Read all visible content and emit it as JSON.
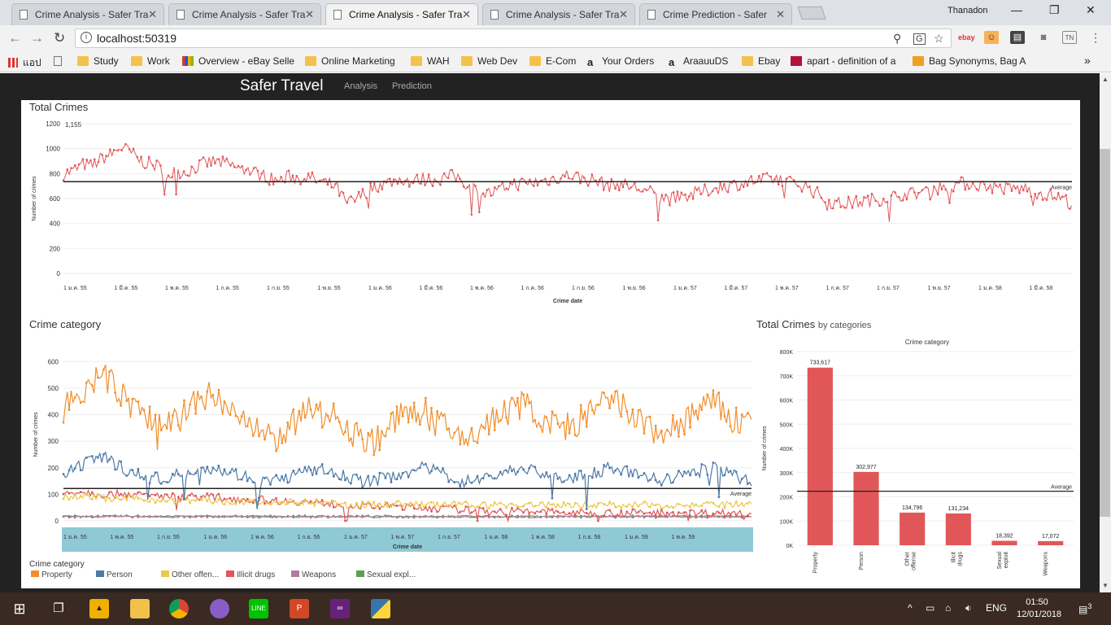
{
  "browser": {
    "tabs": [
      {
        "label": "Crime Analysis - Safer Tra",
        "active": false
      },
      {
        "label": "Crime Analysis - Safer Tra",
        "active": false
      },
      {
        "label": "Crime Analysis - Safer Tra",
        "active": true
      },
      {
        "label": "Crime Analysis - Safer Tra",
        "active": false
      },
      {
        "label": "Crime Prediction - Safer",
        "active": false
      }
    ],
    "user": "Thanadon",
    "url": "localhost:50319",
    "bookmarks": [
      {
        "label": "แอป",
        "icon": "apps-grid-icon"
      },
      {
        "label": "",
        "icon": "page-icon"
      },
      {
        "label": "Study",
        "icon": "folder-icon"
      },
      {
        "label": "Work",
        "icon": "folder-icon"
      },
      {
        "label": "Overview - eBay Selle",
        "icon": "ebay-icon"
      },
      {
        "label": "Online Marketing",
        "icon": "folder-icon"
      },
      {
        "label": "WAH",
        "icon": "folder-icon"
      },
      {
        "label": "Web Dev",
        "icon": "folder-icon"
      },
      {
        "label": "E-Com",
        "icon": "folder-icon"
      },
      {
        "label": "Your Orders",
        "icon": "amazon-icon"
      },
      {
        "label": "AraauuDS",
        "icon": "amazon-icon"
      },
      {
        "label": "Ebay",
        "icon": "folder-icon"
      },
      {
        "label": "apart - definition of a",
        "icon": "dictionary-icon"
      },
      {
        "label": "Bag Synonyms, Bag A",
        "icon": "thesaurus-icon"
      }
    ]
  },
  "app": {
    "brand": "Safer Travel",
    "nav": [
      "Analysis",
      "Prediction"
    ]
  },
  "panels": {
    "total": {
      "title": "Total Crimes"
    },
    "category": {
      "title": "Crime category"
    },
    "bycat": {
      "title": "Total Crimes",
      "subtitle": "by categories"
    }
  },
  "chart_data": [
    {
      "type": "line",
      "title": "Total Crimes",
      "xlabel": "Crime date",
      "ylabel": "Number of crimes",
      "ylim": [
        0,
        1200
      ],
      "yticks": [
        0,
        200,
        400,
        600,
        800,
        1000,
        1200
      ],
      "xticks": [
        "1 ม.ค. 55",
        "1 มี.ค. 55",
        "1 พ.ค. 55",
        "1 ก.ค. 55",
        "1 ก.ย. 55",
        "1 พ.ย. 55",
        "1 ม.ค. 56",
        "1 มี.ค. 56",
        "1 พ.ค. 56",
        "1 ก.ค. 56",
        "1 ก.ย. 56",
        "1 พ.ย. 56",
        "1 ม.ค. 57",
        "1 มี.ค. 57",
        "1 พ.ค. 57",
        "1 ก.ค. 57",
        "1 ก.ย. 57",
        "1 พ.ย. 57",
        "1 ม.ค. 58",
        "1 มี.ค. 58",
        "1 พ.ค. 58",
        "1 ก.ค. 58",
        "1 ก.ย. 58",
        "1 พ.ย. 58",
        "1 ม.ค. 59",
        "1 มี.ค. 59",
        "1 พ.ค. 59",
        "1 ก.ค. 59",
        "1 ก.ย. 59",
        "1 พ.ย. 59",
        "1 ม.ค. 60",
        "1 มี.ค. 60",
        "1 พ.ค. 60",
        "1 ก.ค. 60",
        "1 ก.ย. 60",
        "1 พ.ย. 60",
        "1 ม.ค. 61",
        "1 มี.ค. 61",
        "1 พ.ค. 61",
        "1 ก.ค. 61",
        "1 ก.ย. 61"
      ],
      "annotation": "1,155",
      "reference_line": {
        "label": "Average",
        "value": 735
      },
      "series": [
        {
          "color": "#e15759",
          "monthly_values": [
            800,
            820,
            870,
            860,
            920,
            950,
            1010,
            980,
            910,
            880,
            860,
            780,
            820,
            810,
            850,
            880,
            900,
            880,
            860,
            830,
            820,
            790,
            760,
            740,
            780,
            760,
            770,
            740,
            720,
            690,
            560,
            590,
            650,
            700,
            720,
            740,
            760,
            730,
            760,
            750,
            760,
            780,
            770,
            700,
            660,
            640,
            650,
            700,
            720,
            720,
            730,
            740,
            760,
            780,
            790,
            760,
            750,
            730,
            700,
            720,
            700,
            680,
            660,
            620,
            600,
            600,
            620,
            640,
            660,
            680,
            700,
            710,
            720,
            740,
            740,
            760,
            760,
            730,
            720,
            690,
            640,
            580,
            560,
            560,
            570,
            580,
            590,
            600,
            620,
            630,
            640,
            650,
            670,
            690,
            700,
            720,
            720,
            710,
            700,
            690,
            680,
            680,
            680,
            650,
            640,
            620,
            600,
            560
          ]
        }
      ]
    },
    {
      "type": "line",
      "title": "Crime category",
      "xlabel": "Crime date",
      "ylabel": "Number of crimes",
      "ylim": [
        0,
        650
      ],
      "yticks": [
        0,
        100,
        200,
        300,
        400,
        500,
        600
      ],
      "xticks": [
        "1 ม.ค. 55",
        "1 พ.ค. 55",
        "1 ก.ย. 55",
        "1 ม.ค. 56",
        "1 พ.ค. 56",
        "1 ก.ย. 56",
        "1 ม.ค. 57",
        "1 พ.ค. 57",
        "1 ก.ย. 57",
        "1 ม.ค. 58",
        "1 พ.ค. 58",
        "1 ก.ย. 58",
        "1 ม.ค. 59",
        "1 พ.ค. 59",
        "1 ก.ย. 59",
        "1 ม.ค. 60",
        "1 พ.ค. 60",
        "1 ก.ย. 60",
        "1 ม.ค. 61",
        "1 พ.ค. 61",
        "1 ก.ย. 61"
      ],
      "reference_line": {
        "label": "Average",
        "value": 122
      },
      "legend_title": "Crime category",
      "series": [
        {
          "name": "Property",
          "color": "#f28e2b",
          "monthly_values": [
            420,
            450,
            490,
            520,
            540,
            510,
            470,
            430,
            400,
            370,
            360,
            390,
            410,
            440,
            460,
            470,
            440,
            420,
            380,
            340,
            320,
            310,
            330,
            360,
            390,
            420,
            410,
            400,
            380,
            330,
            310,
            300,
            330,
            370,
            390,
            410,
            420,
            380,
            350,
            330,
            310,
            320,
            350,
            380,
            400,
            420,
            440,
            420,
            380,
            360,
            350,
            360,
            380,
            410,
            440,
            450,
            430,
            400,
            370,
            340,
            330,
            340,
            370,
            400,
            430,
            440,
            420,
            380,
            370,
            400
          ]
        },
        {
          "name": "Person",
          "color": "#4e79a7",
          "monthly_values": [
            170,
            190,
            210,
            230,
            240,
            220,
            200,
            180,
            170,
            160,
            160,
            170,
            180,
            190,
            200,
            200,
            190,
            180,
            170,
            160,
            150,
            150,
            160,
            170,
            180,
            190,
            190,
            180,
            170,
            160,
            150,
            150,
            160,
            170,
            180,
            190,
            200,
            190,
            180,
            160,
            150,
            150,
            160,
            170,
            180,
            190,
            200,
            190,
            180,
            170,
            160,
            160,
            170,
            180,
            190,
            200,
            190,
            180,
            170,
            160,
            150,
            160,
            170,
            180,
            190,
            200,
            190,
            180,
            160,
            150
          ]
        },
        {
          "name": "Other offen...",
          "color": "#edc948",
          "monthly_values": [
            90,
            95,
            95,
            90,
            85,
            80,
            85,
            85,
            80,
            80,
            80,
            75,
            75,
            80,
            80,
            75,
            70,
            70,
            70,
            70,
            65,
            65,
            70,
            70,
            70,
            65,
            65,
            65,
            60,
            60,
            60,
            60,
            60,
            65,
            65,
            65,
            60,
            60,
            60,
            60,
            60,
            60,
            60,
            60,
            60,
            60,
            60,
            60,
            60,
            60,
            60,
            60,
            60,
            60,
            60,
            60,
            60,
            60,
            60,
            60,
            60,
            60,
            60,
            60,
            60,
            60,
            60,
            60,
            60,
            60
          ]
        },
        {
          "name": "Illicit drugs",
          "color": "#e15759",
          "monthly_values": [
            105,
            110,
            110,
            105,
            100,
            100,
            105,
            100,
            95,
            95,
            95,
            90,
            90,
            95,
            90,
            90,
            85,
            85,
            80,
            80,
            80,
            75,
            75,
            75,
            70,
            70,
            65,
            65,
            60,
            60,
            55,
            55,
            55,
            55,
            55,
            50,
            50,
            50,
            45,
            45,
            40,
            40,
            40,
            40,
            35,
            35,
            35,
            35,
            35,
            35,
            30,
            30,
            30,
            30,
            30,
            30,
            30,
            30,
            30,
            30,
            30,
            30,
            30,
            30,
            30,
            30,
            30,
            30,
            30,
            30
          ]
        },
        {
          "name": "Weapons",
          "color": "#b07aa1",
          "monthly_values": [
            15,
            15,
            16,
            16,
            17,
            17,
            16,
            16,
            15,
            15,
            15,
            15,
            16,
            16,
            16,
            16,
            15,
            15,
            15,
            15,
            15,
            15,
            15,
            15,
            15,
            15,
            15,
            15,
            15,
            15,
            15,
            15,
            15,
            15,
            15,
            15,
            15,
            15,
            15,
            15,
            15,
            15,
            15,
            15,
            15,
            15,
            15,
            15,
            15,
            15,
            15,
            15,
            15,
            15,
            15,
            15,
            15,
            15,
            15,
            15,
            15,
            15,
            15,
            15,
            15,
            15,
            15,
            15,
            15,
            15
          ]
        },
        {
          "name": "Sexual expl...",
          "color": "#59a14f",
          "monthly_values": [
            17,
            17,
            17,
            17,
            17,
            17,
            17,
            17,
            17,
            17,
            17,
            17,
            17,
            17,
            17,
            17,
            17,
            17,
            17,
            17,
            17,
            17,
            17,
            17,
            17,
            17,
            17,
            17,
            17,
            17,
            17,
            17,
            17,
            17,
            17,
            17,
            17,
            17,
            17,
            17,
            17,
            17,
            17,
            17,
            17,
            17,
            17,
            17,
            17,
            17,
            17,
            17,
            17,
            17,
            17,
            17,
            17,
            17,
            17,
            17,
            17,
            17,
            17,
            17,
            17,
            17,
            17,
            17,
            17,
            17
          ]
        }
      ]
    },
    {
      "type": "bar",
      "title": "Total Crimes",
      "subtitle": "by categories",
      "header": "Crime category",
      "ylabel": "Number of crimes",
      "ylim": [
        0,
        800000
      ],
      "yticks": [
        "0K",
        "100K",
        "200K",
        "300K",
        "400K",
        "500K",
        "600K",
        "700K",
        "800K"
      ],
      "color": "#e15759",
      "categories": [
        "Property",
        "Person",
        "Other offense",
        "Illicit drugs",
        "Sexual exploit",
        "Weapons"
      ],
      "category_tick_labels": [
        [
          "Property"
        ],
        [
          "Person"
        ],
        [
          "Other",
          "offense"
        ],
        [
          "Illicit",
          "drugs"
        ],
        [
          "Sexual",
          "exploit"
        ],
        [
          "Weapons"
        ]
      ],
      "values": [
        733617,
        302977,
        134796,
        131234,
        18392,
        17072
      ],
      "value_labels": [
        "733,617",
        "302,977",
        "134,796",
        "131,234",
        "18,392",
        "17,072"
      ],
      "reference_line": {
        "label": "Average",
        "value": 223015
      }
    }
  ],
  "taskbar": {
    "time": "01:50",
    "date": "12/01/2018",
    "lang": "ENG",
    "notifications": "3"
  }
}
